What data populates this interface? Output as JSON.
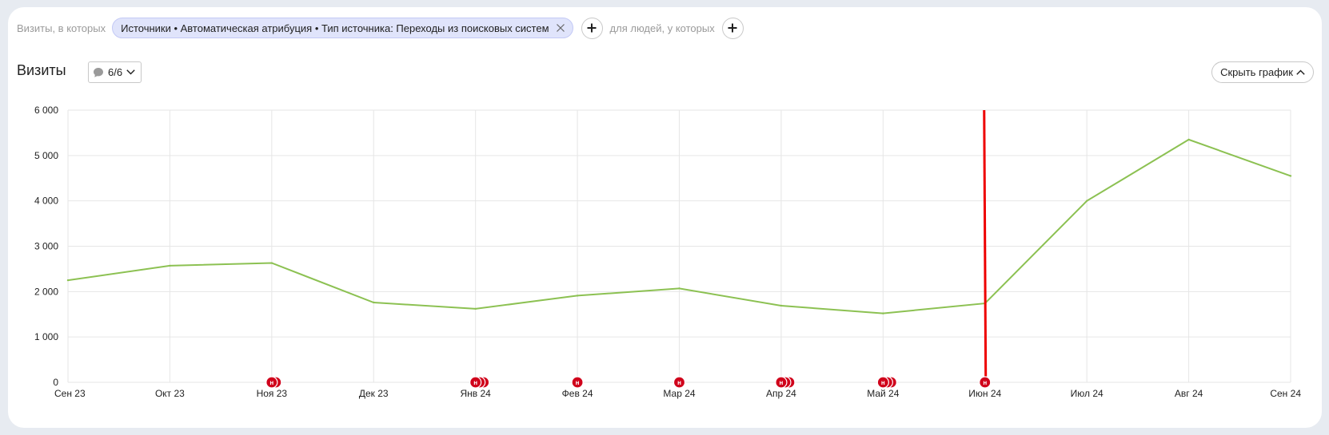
{
  "filters": {
    "prefix": "Визиты, в которых",
    "chip_label": "Источники • Автоматическая атрибуция • Тип источника: Переходы из поисковых систем",
    "middle": "для людей, у которых"
  },
  "header": {
    "title": "Визиты",
    "annotations_label": "6/6",
    "hide_chart_label": "Скрыть график"
  },
  "colors": {
    "line": "#8cc152",
    "marker": "#d0021b",
    "today_line": "#ee0000"
  },
  "icons": [
    "close-icon",
    "plus-icon",
    "comment-icon",
    "chevron-down-icon",
    "chevron-up-icon"
  ],
  "chart_data": {
    "type": "line",
    "categories": [
      "Сен 23",
      "Окт 23",
      "Ноя 23",
      "Дек 23",
      "Янв 24",
      "Фев 24",
      "Мар 24",
      "Апр 24",
      "Май 24",
      "Июн 24",
      "Июл 24",
      "Авг 24",
      "Сен 24"
    ],
    "series": [
      {
        "values": [
          2250,
          2570,
          2630,
          1760,
          1620,
          1910,
          2070,
          1690,
          1520,
          1740,
          4000,
          5350,
          4550
        ]
      }
    ],
    "y_ticks": [
      0,
      1000,
      2000,
      3000,
      4000,
      5000,
      6000
    ],
    "y_tick_labels": [
      "0",
      "1 000",
      "2 000",
      "3 000",
      "4 000",
      "5 000",
      "6 000"
    ],
    "ylim": [
      0,
      6000
    ],
    "grid": true,
    "annotation_marker_label": "н",
    "annotations": [
      {
        "category": "Ноя 23",
        "count": 2
      },
      {
        "category": "Янв 24",
        "count": 3
      },
      {
        "category": "Фев 24",
        "count": 1
      },
      {
        "category": "Мар 24",
        "count": 1
      },
      {
        "category": "Апр 24",
        "count": 3
      },
      {
        "category": "Май 24",
        "count": 3
      },
      {
        "category": "Июн 24",
        "count": 1
      }
    ],
    "vertical_marker_category": "Июн 24"
  }
}
